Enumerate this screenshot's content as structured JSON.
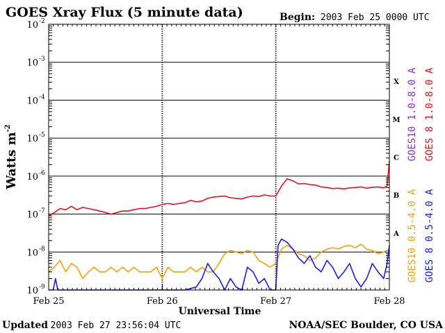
{
  "chart_data": {
    "type": "line",
    "title": "GOES Xray Flux (5 minute data)",
    "begin_label": "Begin:",
    "begin_value": "2003 Feb 25 0000 UTC",
    "ylabel": "Watts m",
    "ylabel_sup": "-2",
    "xlabel": "Universal Time",
    "yscale": "log",
    "ylim": [
      1e-09,
      0.01
    ],
    "xlim": [
      0,
      3
    ],
    "y_tick_exponents": [
      -2,
      -3,
      -4,
      -5,
      -6,
      -7,
      -8,
      -9
    ],
    "x_ticks": [
      {
        "x": 0,
        "label": "Feb 25"
      },
      {
        "x": 1,
        "label": "Feb 26"
      },
      {
        "x": 2,
        "label": "Feb 27"
      },
      {
        "x": 3,
        "label": "Feb 28"
      }
    ],
    "flare_classes": [
      {
        "label": "X",
        "y": 0.000316
      },
      {
        "label": "M",
        "y": 3.16e-05
      },
      {
        "label": "C",
        "y": 3.16e-06
      },
      {
        "label": "B",
        "y": 3.16e-07
      },
      {
        "label": "A",
        "y": 3.16e-08
      }
    ],
    "legend": [
      {
        "label": "GOES10 1.0-8.0 A",
        "color": "#8a2be2",
        "group": "long"
      },
      {
        "label": "GOES 8 1.0-8.0 A",
        "color": "#e8121d",
        "group": "long"
      },
      {
        "label": "GOES10 0.5-4.0 A",
        "color": "#f4a300",
        "group": "short"
      },
      {
        "label": "GOES 8 0.5-4.0 A",
        "color": "#1a1aff",
        "group": "short"
      }
    ],
    "series": [
      {
        "name": "GOES 8 1.0-8.0 A",
        "color": "#e8121d",
        "x": [
          0,
          0.05,
          0.1,
          0.15,
          0.2,
          0.25,
          0.3,
          0.35,
          0.4,
          0.45,
          0.5,
          0.55,
          0.6,
          0.65,
          0.7,
          0.75,
          0.8,
          0.85,
          0.9,
          0.95,
          1.0,
          1.05,
          1.1,
          1.15,
          1.2,
          1.25,
          1.3,
          1.35,
          1.4,
          1.45,
          1.5,
          1.55,
          1.6,
          1.65,
          1.7,
          1.75,
          1.8,
          1.85,
          1.9,
          1.95,
          2.0,
          2.05,
          2.1,
          2.15,
          2.2,
          2.25,
          2.3,
          2.35,
          2.4,
          2.45,
          2.5,
          2.55,
          2.6,
          2.65,
          2.7,
          2.75,
          2.8,
          2.85,
          2.9,
          2.95,
          2.98,
          3.0
        ],
        "values": [
          9e-08,
          1.1e-07,
          1.4e-07,
          1.3e-07,
          1.6e-07,
          1.3e-07,
          1.5e-07,
          1.4e-07,
          1.3e-07,
          1.2e-07,
          1.1e-07,
          1e-07,
          1.1e-07,
          1.2e-07,
          1.2e-07,
          1.3e-07,
          1.4e-07,
          1.4e-07,
          1.5e-07,
          1.6e-07,
          1.8e-07,
          1.9e-07,
          1.8e-07,
          1.9e-07,
          2e-07,
          2.3e-07,
          2.1e-07,
          2.2e-07,
          2.6e-07,
          2.8e-07,
          2.9e-07,
          3e-07,
          2.7e-07,
          2.6e-07,
          2.5e-07,
          2.8e-07,
          3e-07,
          2.9e-07,
          3.2e-07,
          3e-07,
          3e-07,
          5.5e-07,
          8.5e-07,
          7.5e-07,
          6.2e-07,
          6.4e-07,
          6e-07,
          5.8e-07,
          5.2e-07,
          5e-07,
          4.7e-07,
          4.8e-07,
          4.6e-07,
          4.9e-07,
          5e-07,
          5.2e-07,
          4.8e-07,
          5.1e-07,
          5.2e-07,
          4.9e-07,
          5.5e-07,
          2.5e-06
        ]
      },
      {
        "name": "GOES10 0.5-4.0 A",
        "color": "#f4a300",
        "x": [
          0,
          0.05,
          0.1,
          0.15,
          0.2,
          0.25,
          0.3,
          0.35,
          0.4,
          0.45,
          0.5,
          0.55,
          0.6,
          0.65,
          0.7,
          0.75,
          0.8,
          0.85,
          0.9,
          0.95,
          1.0,
          1.05,
          1.1,
          1.15,
          1.2,
          1.25,
          1.3,
          1.35,
          1.4,
          1.45,
          1.5,
          1.55,
          1.6,
          1.65,
          1.7,
          1.75,
          1.8,
          1.85,
          1.9,
          1.95,
          2.0,
          2.05,
          2.1,
          2.15,
          2.2,
          2.25,
          2.3,
          2.35,
          2.4,
          2.45,
          2.5,
          2.55,
          2.6,
          2.65,
          2.7,
          2.75,
          2.8,
          2.85,
          2.9,
          2.95,
          3.0
        ],
        "values": [
          3e-09,
          4e-09,
          6e-09,
          3e-09,
          5e-09,
          4e-09,
          2e-09,
          3e-09,
          4e-09,
          3e-09,
          3e-09,
          4e-09,
          3e-09,
          4e-09,
          3e-09,
          4e-09,
          3e-09,
          3e-09,
          3e-09,
          4e-09,
          2e-09,
          4e-09,
          3e-09,
          3e-09,
          3e-09,
          4e-09,
          3e-09,
          4e-09,
          3e-09,
          3e-09,
          5e-09,
          9e-09,
          1.1e-08,
          1e-08,
          9e-09,
          1.1e-08,
          1e-08,
          6e-09,
          5e-09,
          4e-09,
          5e-09,
          1.2e-08,
          1.5e-08,
          1.2e-08,
          9e-09,
          8e-09,
          6e-09,
          7e-09,
          1e-08,
          1.2e-08,
          1.3e-08,
          1.2e-08,
          1.4e-08,
          1.5e-08,
          1.3e-08,
          1.6e-08,
          1.2e-08,
          1.1e-08,
          9e-09,
          1e-08,
          1.2e-08
        ]
      },
      {
        "name": "GOES 8 0.5-4.0 A",
        "color": "#1a1aff",
        "x": [
          0,
          0.04,
          0.06,
          0.08,
          0.1,
          0.15,
          0.2,
          0.3,
          0.4,
          0.5,
          0.55,
          0.6,
          0.7,
          0.8,
          0.9,
          1.0,
          1.1,
          1.2,
          1.3,
          1.35,
          1.4,
          1.45,
          1.5,
          1.55,
          1.6,
          1.65,
          1.7,
          1.75,
          1.8,
          1.85,
          1.9,
          1.95,
          2.0,
          2.02,
          2.05,
          2.1,
          2.15,
          2.2,
          2.25,
          2.3,
          2.35,
          2.4,
          2.45,
          2.5,
          2.55,
          2.6,
          2.65,
          2.7,
          2.75,
          2.8,
          2.85,
          2.9,
          2.95,
          2.98,
          3.0
        ],
        "values": [
          1e-09,
          1e-09,
          2e-09,
          1e-09,
          1e-09,
          1e-09,
          1e-09,
          1e-09,
          1e-09,
          1e-09,
          1e-09,
          1e-09,
          1e-09,
          1e-09,
          1e-09,
          1e-09,
          1e-09,
          1e-09,
          1.2e-09,
          2e-09,
          5e-09,
          3e-09,
          2e-09,
          1e-09,
          2e-09,
          1.2e-09,
          1e-09,
          4e-09,
          3e-09,
          1.5e-09,
          2e-09,
          1e-09,
          1e-09,
          1.5e-08,
          2.2e-08,
          1.8e-08,
          1.2e-08,
          7e-09,
          5e-09,
          8e-09,
          4e-09,
          3e-09,
          6e-09,
          4e-09,
          2e-09,
          3e-09,
          5e-09,
          2e-09,
          1.2e-09,
          2e-09,
          5e-09,
          3e-09,
          2e-09,
          5e-09,
          1.5e-08
        ]
      }
    ]
  },
  "footer": {
    "updated_prefix": "Updated",
    "updated_value": "2003 Feb 27 23:56:04 UTC",
    "credit": "NOAA/SEC Boulder, CO USA"
  },
  "style": {
    "background": "#ffffff",
    "axis_color": "#000000"
  }
}
